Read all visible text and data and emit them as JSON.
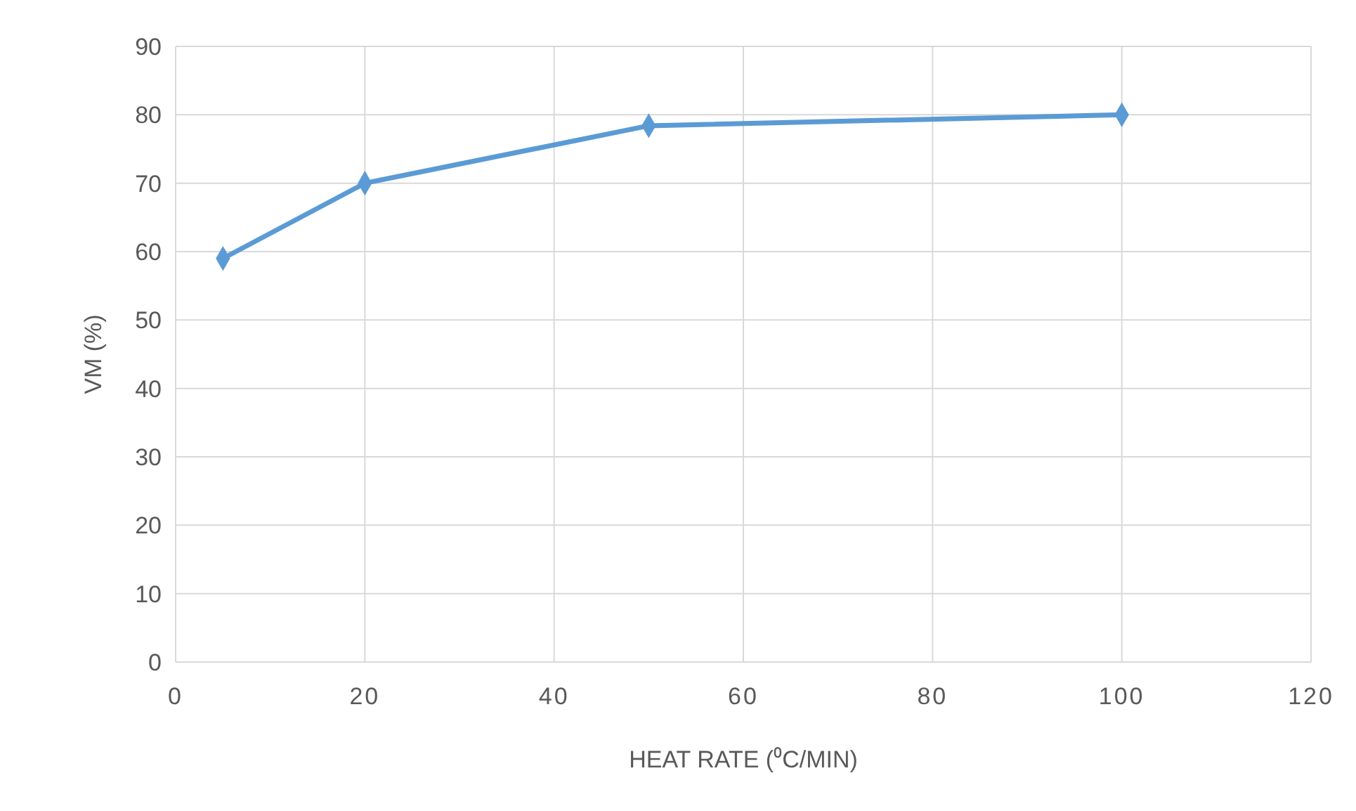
{
  "chart_data": {
    "type": "line",
    "xlabel": "HEAT RATE (⁰C/MIN)",
    "ylabel": "VM (%)",
    "x": [
      5,
      20,
      50,
      100
    ],
    "series": [
      {
        "color": "#5b9bd5",
        "values": [
          59,
          70,
          78.4,
          80
        ]
      }
    ],
    "xlim": [
      0,
      120
    ],
    "xticks": [
      0,
      20,
      40,
      60,
      80,
      100,
      120
    ],
    "ylim": [
      0,
      90
    ],
    "yticks": [
      0,
      10,
      20,
      30,
      40,
      50,
      60,
      70,
      80,
      90
    ],
    "grid": true,
    "marker": "diamond",
    "line_style": "solid"
  }
}
